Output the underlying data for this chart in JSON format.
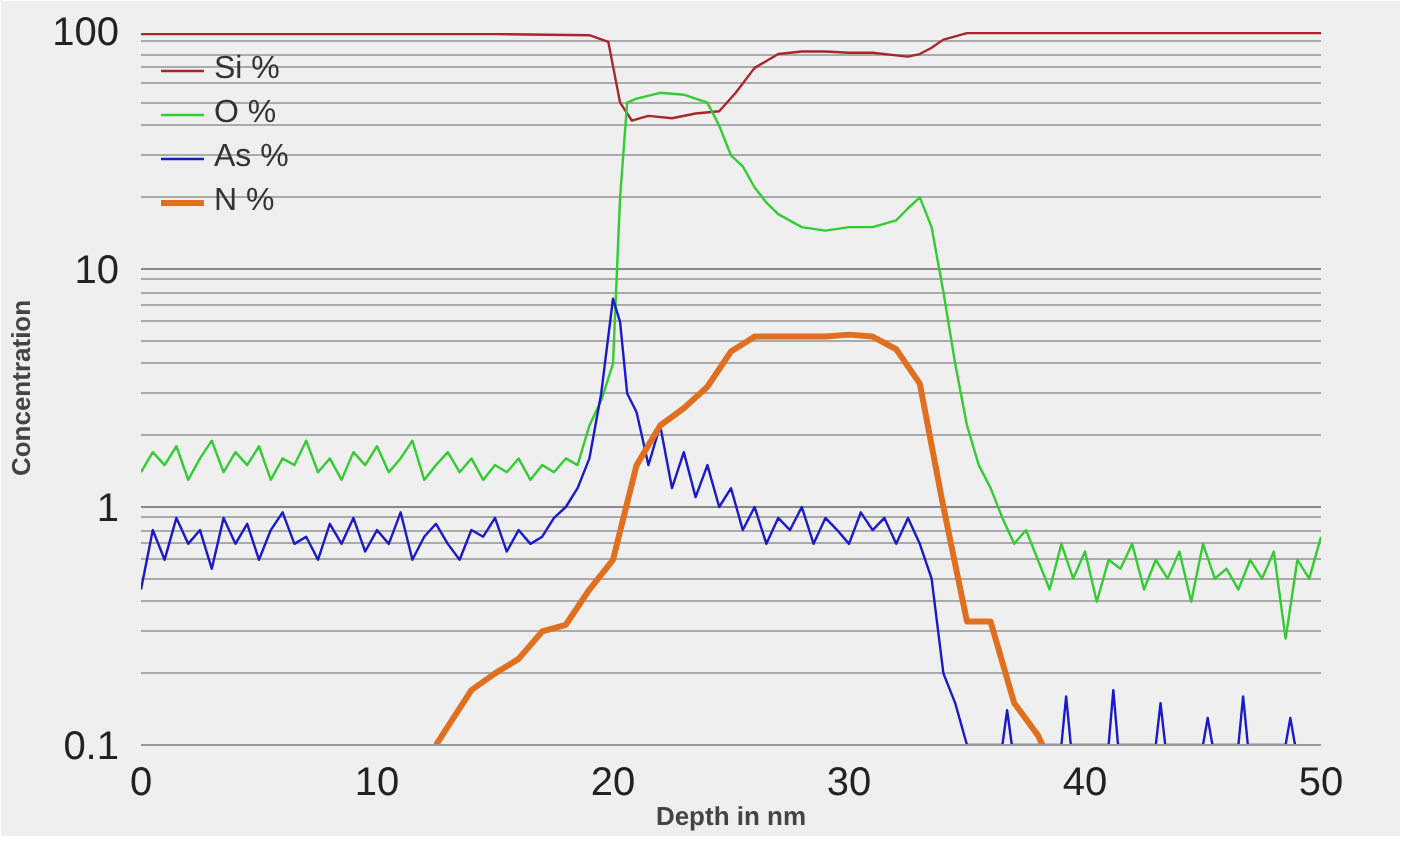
{
  "chart_data": {
    "type": "line",
    "xlabel": "Depth in nm",
    "ylabel": "Concentration",
    "log": "y",
    "grid": "y",
    "legend": "top left",
    "marker": "none",
    "line_style": "solid",
    "xlim": [
      0,
      50
    ],
    "xticks": [
      0,
      10,
      20,
      30,
      40,
      50
    ],
    "ylim": [
      0.1,
      100
    ],
    "yticks": [
      0.1,
      1,
      10,
      100
    ],
    "series": [
      {
        "name": "Si %",
        "color": "#a8262c",
        "x": [
          0,
          5,
          10,
          15,
          19,
          19.8,
          20.3,
          20.8,
          21.5,
          22.5,
          23.5,
          24.5,
          25.2,
          26,
          27,
          28,
          29,
          30,
          31,
          32,
          32.5,
          33,
          33.5,
          34,
          35,
          40,
          45,
          50
        ],
        "values": [
          97,
          97,
          97,
          97,
          96,
          90,
          50,
          42,
          44,
          43,
          45,
          46,
          55,
          70,
          80,
          82,
          82,
          81,
          81,
          79,
          78,
          80,
          85,
          92,
          98,
          98,
          98,
          98
        ]
      },
      {
        "name": "O %",
        "color": "#33cc33",
        "x": [
          0,
          0.5,
          1,
          1.5,
          2,
          2.5,
          3,
          3.5,
          4,
          4.5,
          5,
          5.5,
          6,
          6.5,
          7,
          7.5,
          8,
          8.5,
          9,
          9.5,
          10,
          10.5,
          11,
          11.5,
          12,
          12.5,
          13,
          13.5,
          14,
          14.5,
          15,
          15.5,
          16,
          16.5,
          17,
          17.5,
          18,
          18.5,
          19,
          19.5,
          20,
          20.3,
          20.6,
          21,
          22,
          23,
          24,
          24.5,
          25,
          25.5,
          26,
          26.5,
          27,
          28,
          29,
          30,
          31,
          32,
          32.5,
          33,
          33.5,
          34,
          34.5,
          35,
          35.5,
          36,
          36.5,
          37,
          37.5,
          38,
          38.5,
          39,
          39.5,
          40,
          40.5,
          41,
          41.5,
          42,
          42.5,
          43,
          43.5,
          44,
          44.5,
          45,
          45.5,
          46,
          46.5,
          47,
          47.5,
          48,
          48.5,
          49,
          49.5,
          50
        ],
        "values": [
          1.4,
          1.7,
          1.5,
          1.8,
          1.3,
          1.6,
          1.9,
          1.4,
          1.7,
          1.5,
          1.8,
          1.3,
          1.6,
          1.5,
          1.9,
          1.4,
          1.6,
          1.3,
          1.7,
          1.5,
          1.8,
          1.4,
          1.6,
          1.9,
          1.3,
          1.5,
          1.7,
          1.4,
          1.6,
          1.3,
          1.5,
          1.4,
          1.6,
          1.3,
          1.5,
          1.4,
          1.6,
          1.5,
          2.2,
          2.8,
          4,
          20,
          50,
          52,
          55,
          54,
          50,
          40,
          30,
          27,
          22,
          19,
          17,
          15,
          14.5,
          15,
          15,
          16,
          18,
          20,
          15,
          8,
          4,
          2.2,
          1.5,
          1.2,
          0.9,
          0.7,
          0.8,
          0.6,
          0.45,
          0.7,
          0.5,
          0.65,
          0.4,
          0.6,
          0.55,
          0.7,
          0.45,
          0.6,
          0.5,
          0.65,
          0.4,
          0.7,
          0.5,
          0.55,
          0.45,
          0.6,
          0.5,
          0.65,
          0.28,
          0.6,
          0.5,
          0.75
        ]
      },
      {
        "name": "As %",
        "color": "#1a1acc",
        "x": [
          0,
          0.5,
          1,
          1.5,
          2,
          2.5,
          3,
          3.5,
          4,
          4.5,
          5,
          5.5,
          6,
          6.5,
          7,
          7.5,
          8,
          8.5,
          9,
          9.5,
          10,
          10.5,
          11,
          11.5,
          12,
          12.5,
          13,
          13.5,
          14,
          14.5,
          15,
          15.5,
          16,
          16.5,
          17,
          17.5,
          18,
          18.5,
          19,
          19.5,
          20,
          20.3,
          20.6,
          21,
          21.5,
          22,
          22.5,
          23,
          23.5,
          24,
          24.5,
          25,
          25.5,
          26,
          26.5,
          27,
          27.5,
          28,
          28.5,
          29,
          29.5,
          30,
          30.5,
          31,
          31.5,
          32,
          32.5,
          33,
          33.5,
          34,
          34.5,
          35,
          36.5,
          36.7,
          36.9,
          39,
          39.2,
          39.4,
          41,
          41.2,
          41.4,
          43,
          43.2,
          43.4,
          45,
          45.2,
          45.4,
          46.5,
          46.7,
          46.9,
          48.5,
          48.7,
          48.9
        ],
        "values": [
          0.45,
          0.8,
          0.6,
          0.9,
          0.7,
          0.8,
          0.55,
          0.9,
          0.7,
          0.85,
          0.6,
          0.8,
          0.95,
          0.7,
          0.75,
          0.6,
          0.85,
          0.7,
          0.9,
          0.65,
          0.8,
          0.7,
          0.95,
          0.6,
          0.75,
          0.85,
          0.7,
          0.6,
          0.8,
          0.75,
          0.9,
          0.65,
          0.8,
          0.7,
          0.75,
          0.9,
          1.0,
          1.2,
          1.6,
          3,
          7.5,
          6,
          3,
          2.5,
          1.5,
          2.2,
          1.2,
          1.7,
          1.1,
          1.5,
          1.0,
          1.2,
          0.8,
          1.0,
          0.7,
          0.9,
          0.8,
          1.0,
          0.7,
          0.9,
          0.8,
          0.7,
          0.95,
          0.8,
          0.9,
          0.7,
          0.9,
          0.7,
          0.5,
          0.2,
          0.15,
          0.1,
          0.1,
          0.14,
          0.1,
          0.1,
          0.16,
          0.1,
          0.1,
          0.17,
          0.1,
          0.1,
          0.15,
          0.1,
          0.1,
          0.13,
          0.1,
          0.1,
          0.16,
          0.1,
          0.1,
          0.13,
          0.1
        ]
      },
      {
        "name": "N %",
        "color": "#e07020",
        "x": [
          12.5,
          14,
          15,
          16,
          17,
          18,
          19,
          20,
          21,
          22,
          23,
          24,
          25,
          26,
          27,
          28,
          29,
          30,
          31,
          32,
          33,
          34,
          35,
          36,
          37,
          38,
          38.2
        ],
        "values": [
          0.1,
          0.17,
          0.2,
          0.23,
          0.3,
          0.32,
          0.45,
          0.6,
          1.5,
          2.2,
          2.6,
          3.2,
          4.5,
          5.2,
          5.2,
          5.2,
          5.2,
          5.3,
          5.2,
          4.6,
          3.3,
          1.0,
          0.33,
          0.33,
          0.15,
          0.11,
          0.1
        ]
      }
    ]
  }
}
